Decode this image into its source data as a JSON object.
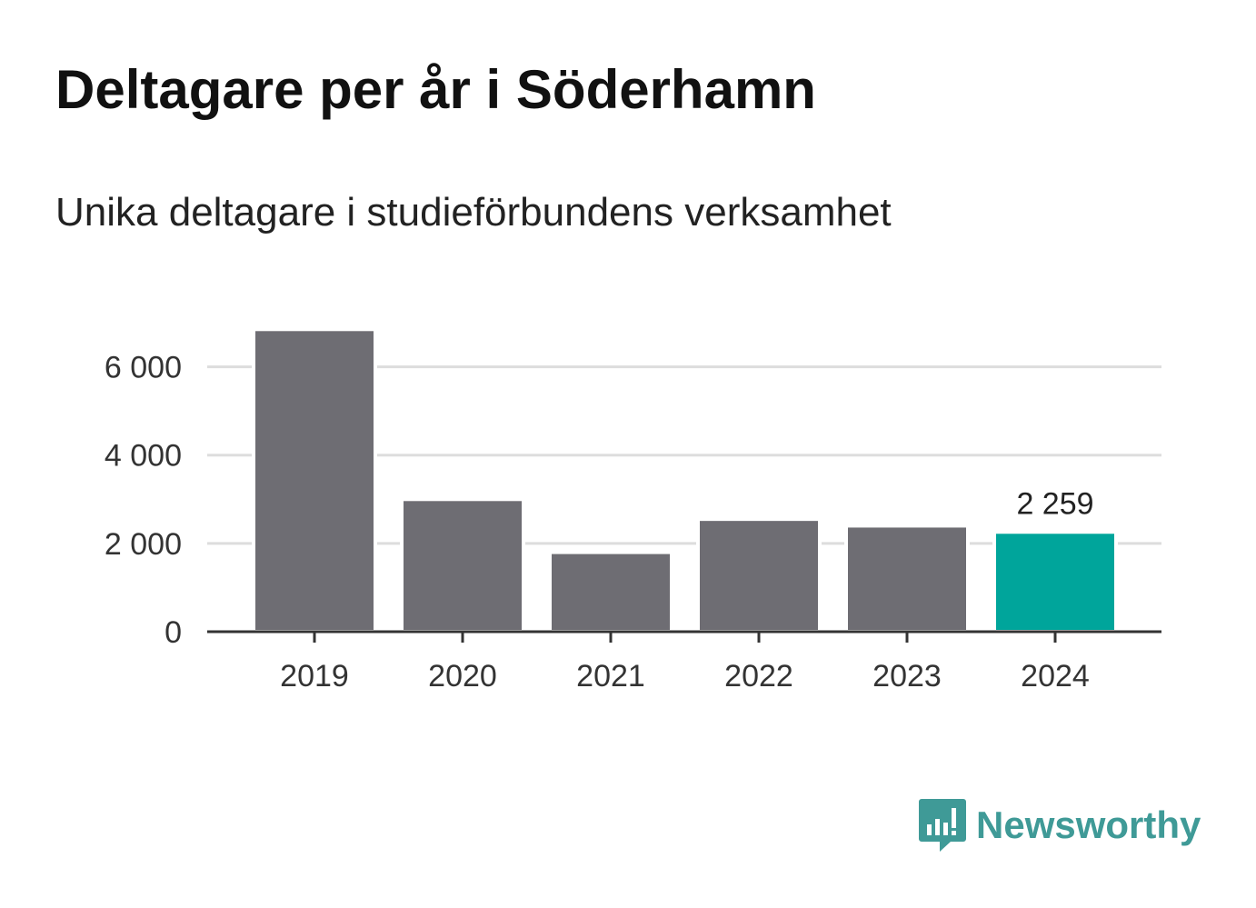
{
  "header": {
    "title": "Deltagare per år i Söderhamn",
    "subtitle": "Unika deltagare i studieförbundens verksamhet"
  },
  "colors": {
    "bar_default": "#6e6d73",
    "bar_highlight": "#00a59b",
    "grid": "#dddddd",
    "axis": "#333333",
    "brand": "#3f9a97"
  },
  "chart_data": {
    "type": "bar",
    "title": "Deltagare per år i Söderhamn",
    "subtitle": "Unika deltagare i studieförbundens verksamhet",
    "xlabel": "",
    "ylabel": "",
    "categories": [
      "2019",
      "2020",
      "2021",
      "2022",
      "2023",
      "2024"
    ],
    "values": [
      6850,
      3000,
      1800,
      2550,
      2400,
      2259
    ],
    "highlight_index": 5,
    "data_labels": [
      {
        "index": 5,
        "text": "2 259"
      }
    ],
    "ylim": [
      0,
      7000
    ],
    "yticks": [
      0,
      2000,
      4000,
      6000
    ],
    "ytick_labels": [
      "0",
      "2 000",
      "4 000",
      "6 000"
    ],
    "grid": true
  },
  "branding": {
    "logo_text": "Newsworthy",
    "logo_icon": "newsworthy-chart-icon"
  }
}
